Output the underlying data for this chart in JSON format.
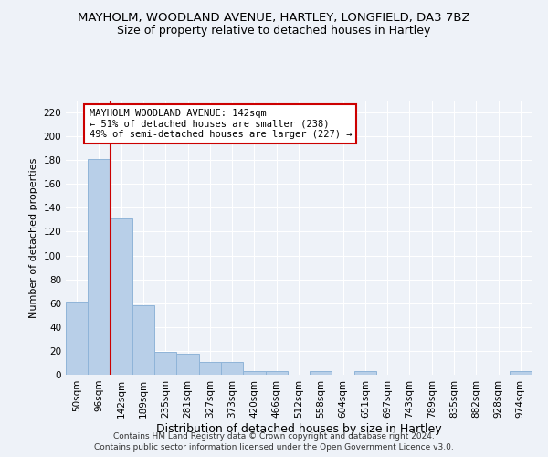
{
  "title1": "MAYHOLM, WOODLAND AVENUE, HARTLEY, LONGFIELD, DA3 7BZ",
  "title2": "Size of property relative to detached houses in Hartley",
  "xlabel": "Distribution of detached houses by size in Hartley",
  "ylabel": "Number of detached properties",
  "categories": [
    "50sqm",
    "96sqm",
    "142sqm",
    "189sqm",
    "235sqm",
    "281sqm",
    "327sqm",
    "373sqm",
    "420sqm",
    "466sqm",
    "512sqm",
    "558sqm",
    "604sqm",
    "651sqm",
    "697sqm",
    "743sqm",
    "789sqm",
    "835sqm",
    "882sqm",
    "928sqm",
    "974sqm"
  ],
  "values": [
    61,
    181,
    131,
    58,
    19,
    18,
    11,
    11,
    3,
    3,
    0,
    3,
    0,
    3,
    0,
    0,
    0,
    0,
    0,
    0,
    3
  ],
  "bar_color": "#b8cfe8",
  "bar_edge_color": "#8fb4d8",
  "red_line_index": 2,
  "annotation_text": "MAYHOLM WOODLAND AVENUE: 142sqm\n← 51% of detached houses are smaller (238)\n49% of semi-detached houses are larger (227) →",
  "annotation_box_facecolor": "#ffffff",
  "annotation_box_edgecolor": "#cc0000",
  "ylim": [
    0,
    230
  ],
  "yticks": [
    0,
    20,
    40,
    60,
    80,
    100,
    120,
    140,
    160,
    180,
    200,
    220
  ],
  "footer1": "Contains HM Land Registry data © Crown copyright and database right 2024.",
  "footer2": "Contains public sector information licensed under the Open Government Licence v3.0.",
  "bg_color": "#eef2f8",
  "grid_color": "#ffffff",
  "title1_fontsize": 9.5,
  "title2_fontsize": 9,
  "ylabel_fontsize": 8,
  "xlabel_fontsize": 9,
  "tick_fontsize": 7.5,
  "annot_fontsize": 7.5
}
